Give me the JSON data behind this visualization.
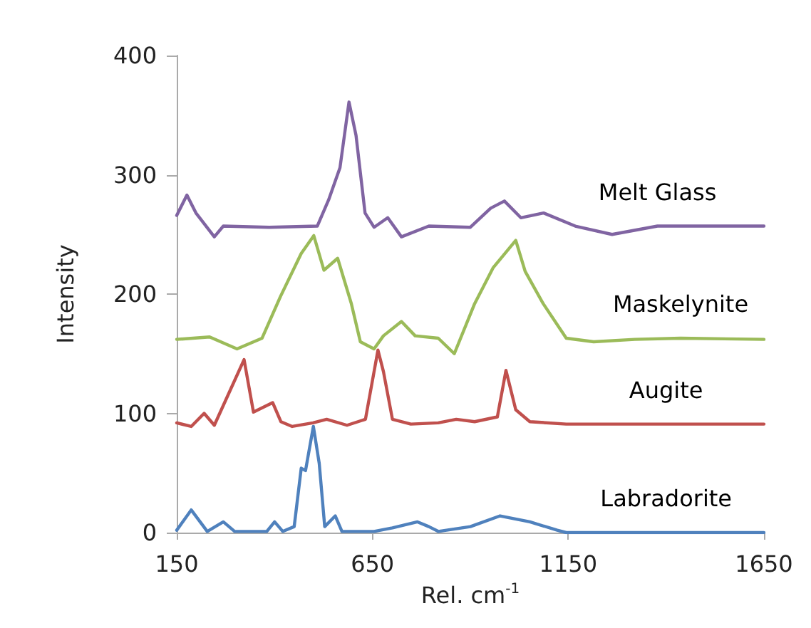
{
  "chart_data": {
    "type": "line",
    "xlabel": "Rel. cm$^{-1}$",
    "ylabel": "Intensity",
    "xlim": [
      150,
      1650
    ],
    "xticks": [
      150,
      650,
      1150,
      1650
    ],
    "ylim": [
      0,
      400
    ],
    "yticks": [
      0,
      100,
      200,
      300,
      400
    ],
    "grid": false,
    "legend": false,
    "marker": "none",
    "line_style": "solid",
    "series": [
      {
        "name": "Melt Glass",
        "color": "#8064a2",
        "x": [
          150,
          176,
          199,
          246,
          269,
          386,
          509,
          538,
          567,
          590,
          608,
          631,
          654,
          689,
          724,
          794,
          900,
          952,
          987,
          1029,
          1087,
          1168,
          1262,
          1378,
          1650
        ],
        "values": [
          266,
          283,
          268,
          248,
          257,
          256,
          257,
          279,
          306,
          361,
          333,
          268,
          256,
          264,
          248,
          257,
          256,
          272,
          278,
          264,
          268,
          257,
          250,
          257,
          257
        ]
      },
      {
        "name": "Maskelynite",
        "color": "#9bbb59",
        "x": [
          150,
          234,
          304,
          368,
          415,
          468,
          500,
          526,
          561,
          596,
          619,
          654,
          678,
          724,
          759,
          818,
          859,
          911,
          958,
          1016,
          1040,
          1086,
          1145,
          1215,
          1320,
          1437,
          1650
        ],
        "values": [
          162,
          164,
          154,
          163,
          198,
          234,
          249,
          220,
          230,
          192,
          160,
          154,
          165,
          177,
          165,
          163,
          150,
          192,
          222,
          245,
          219,
          192,
          163,
          160,
          162,
          163,
          162
        ]
      },
      {
        "name": "Augite",
        "color": "#c0504d",
        "x": [
          150,
          187,
          220,
          246,
          322,
          346,
          395,
          416,
          445,
          498,
          533,
          585,
          632,
          664,
          678,
          701,
          748,
          818,
          864,
          911,
          969,
          991,
          1016,
          1052,
          1145,
          1400,
          1650
        ],
        "values": [
          92,
          89,
          100,
          90,
          145,
          101,
          109,
          93,
          89,
          92,
          95,
          90,
          95,
          153,
          135,
          95,
          91,
          92,
          95,
          93,
          97,
          136,
          103,
          93,
          91,
          91,
          91
        ]
      },
      {
        "name": "Labradorite",
        "color": "#4f81bd",
        "x": [
          150,
          187,
          228,
          269,
          298,
          380,
          400,
          421,
          450,
          468,
          479,
          499,
          514,
          528,
          555,
          572,
          654,
          701,
          765,
          794,
          818,
          900,
          976,
          1052,
          1122,
          1145,
          1400,
          1650
        ],
        "values": [
          2,
          19,
          1,
          9,
          1,
          1,
          9,
          1,
          5,
          54,
          52,
          89,
          58,
          5,
          14,
          1,
          1,
          4,
          9,
          5,
          1,
          5,
          14,
          9,
          2,
          0,
          0,
          0
        ]
      }
    ]
  }
}
